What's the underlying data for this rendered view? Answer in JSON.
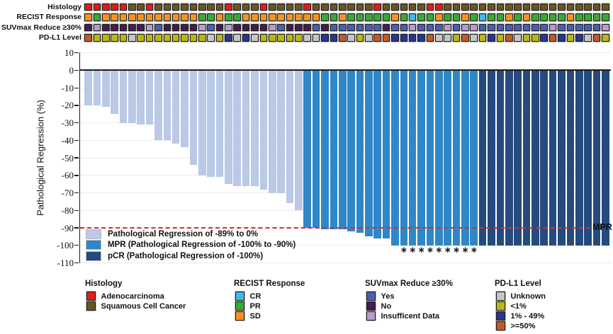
{
  "chart_data": {
    "type": "bar",
    "subtype": "waterfall",
    "title": "",
    "xlabel": "",
    "ylabel": "Pathological Regression (%)",
    "ylim": [
      -110,
      10
    ],
    "yticks": [
      10,
      0,
      -10,
      -20,
      -30,
      -40,
      -50,
      -60,
      -70,
      -80,
      -90,
      -100,
      -110
    ],
    "grid": "horizontal-light",
    "n_patients": 60,
    "values": [
      -20,
      -20,
      -21,
      -25,
      -30,
      -30,
      -31,
      -31,
      -40,
      -40,
      -42,
      -44,
      -54,
      -60,
      -61,
      -61,
      -65,
      -66,
      -66,
      -66,
      -68,
      -70,
      -70,
      -76,
      -80,
      -90,
      -90,
      -91,
      -91,
      -91,
      -92,
      -93,
      -95,
      -96,
      -96,
      -100,
      -100,
      -100,
      -100,
      -100,
      -100,
      -100,
      -100,
      -100,
      -100,
      -100,
      -100,
      -100,
      -100,
      -100,
      -100,
      -100,
      -100,
      -100,
      -100,
      -100,
      -100,
      -100,
      -100,
      -100
    ],
    "bar_groups": [
      "light",
      "light",
      "light",
      "light",
      "light",
      "light",
      "light",
      "light",
      "light",
      "light",
      "light",
      "light",
      "light",
      "light",
      "light",
      "light",
      "light",
      "light",
      "light",
      "light",
      "light",
      "light",
      "light",
      "light",
      "light",
      "mpr",
      "mpr",
      "mpr",
      "mpr",
      "mpr",
      "mpr",
      "mpr",
      "mpr",
      "mpr",
      "mpr",
      "mpr",
      "mpr",
      "mpr",
      "mpr",
      "mpr",
      "mpr",
      "mpr",
      "mpr",
      "mpr",
      "mpr",
      "pcr",
      "pcr",
      "pcr",
      "pcr",
      "pcr",
      "pcr",
      "pcr",
      "pcr",
      "pcr",
      "pcr",
      "pcr",
      "pcr",
      "pcr",
      "pcr",
      "pcr"
    ],
    "asterisk_bar_indices": [
      37,
      38,
      39,
      40,
      41,
      42,
      43,
      44,
      45
    ],
    "reference_line": {
      "value": -90,
      "label": "MPR",
      "color": "#E62528",
      "style": "dashed"
    }
  },
  "bar_colors": {
    "light": "#B9C9E6",
    "mpr": "#2F87C7",
    "pcr": "#254A7D"
  },
  "tracks": [
    {
      "label": "Histology",
      "palette": {
        "A": "#DF1E1C",
        "S": "#6A5523"
      },
      "cells": [
        "A",
        "A",
        "A",
        "A",
        "A",
        "S",
        "S",
        "A",
        "S",
        "S",
        "S",
        "S",
        "S",
        "S",
        "S",
        "S",
        "A",
        "S",
        "S",
        "S",
        "A",
        "S",
        "S",
        "S",
        "S",
        "A",
        "S",
        "S",
        "S",
        "S",
        "S",
        "S",
        "S",
        "A",
        "S",
        "S",
        "S",
        "S",
        "S",
        "A",
        "A",
        "S",
        "S",
        "S",
        "S",
        "S",
        "S",
        "S",
        "S",
        "S",
        "S",
        "S",
        "S",
        "S",
        "S",
        "S",
        "S",
        "S",
        "S",
        "S"
      ]
    },
    {
      "label": "RECIST Response",
      "palette": {
        "S": "#F6921E",
        "P": "#39A935",
        "C": "#3FB9E9"
      },
      "cells": [
        "S",
        "P",
        "S",
        "S",
        "S",
        "S",
        "S",
        "S",
        "S",
        "S",
        "S",
        "S",
        "S",
        "P",
        "P",
        "S",
        "P",
        "P",
        "S",
        "S",
        "S",
        "S",
        "S",
        "S",
        "S",
        "S",
        "S",
        "P",
        "P",
        "S",
        "P",
        "P",
        "P",
        "P",
        "P",
        "S",
        "P",
        "C",
        "P",
        "P",
        "S",
        "P",
        "P",
        "S",
        "P",
        "C",
        "P",
        "P",
        "S",
        "P",
        "S",
        "P",
        "P",
        "P",
        "P",
        "S",
        "P",
        "P",
        "P",
        "P"
      ]
    },
    {
      "label": "SUVmax Reduce ≥30%",
      "palette": {
        "Y": "#4A5FB0",
        "N": "#461B50",
        "I": "#B79BCD"
      },
      "cells": [
        "N",
        "I",
        "N",
        "N",
        "N",
        "N",
        "N",
        "I",
        "Y",
        "N",
        "N",
        "N",
        "N",
        "I",
        "Y",
        "N",
        "I",
        "N",
        "N",
        "N",
        "N",
        "I",
        "Y",
        "N",
        "N",
        "N",
        "Y",
        "N",
        "Y",
        "Y",
        "Y",
        "Y",
        "Y",
        "Y",
        "N",
        "Y",
        "Y",
        "I",
        "Y",
        "Y",
        "Y",
        "I",
        "Y",
        "I",
        "I",
        "Y",
        "Y",
        "Y",
        "Y",
        "Y",
        "Y",
        "Y",
        "Y",
        "I",
        "Y",
        "Y",
        "Y",
        "Y",
        "Y",
        "I"
      ]
    },
    {
      "label": "PD-L1 Level",
      "palette": {
        "U": "#C6C6C6",
        "L": "#B8B714",
        "B": "#27368F",
        "H": "#C05A28"
      },
      "cells": [
        "H",
        "L",
        "L",
        "L",
        "L",
        "U",
        "L",
        "L",
        "L",
        "L",
        "L",
        "L",
        "L",
        "L",
        "U",
        "L",
        "B",
        "U",
        "B",
        "U",
        "L",
        "L",
        "L",
        "L",
        "L",
        "U",
        "U",
        "B",
        "B",
        "H",
        "U",
        "L",
        "U",
        "H",
        "H",
        "B",
        "B",
        "B",
        "B",
        "H",
        "U",
        "U",
        "L",
        "H",
        "U",
        "L",
        "B",
        "L",
        "H",
        "U",
        "L",
        "L",
        "B",
        "H",
        "B",
        "L",
        "B",
        "U",
        "H",
        "L"
      ]
    }
  ],
  "inner_legend": {
    "items": [
      {
        "color_key": "light",
        "label": "Pathological Regression of -89% to 0%"
      },
      {
        "color_key": "mpr",
        "label": "MPR (Pathological Regression of -100% to -90%)"
      },
      {
        "color_key": "pcr",
        "label": "pCR (Pathological Regression of -100%)"
      }
    ]
  },
  "bottom_legends": [
    {
      "title": "Histology",
      "items": [
        {
          "label": "Adenocarcinoma",
          "color": "#DF1E1C"
        },
        {
          "label": "Squamous Cell Cancer",
          "color": "#6A5523"
        }
      ]
    },
    {
      "title": "RECIST Response",
      "items": [
        {
          "label": "CR",
          "color": "#3FB9E9"
        },
        {
          "label": "PR",
          "color": "#39A935"
        },
        {
          "label": "SD",
          "color": "#F6921E"
        }
      ]
    },
    {
      "title": "SUVmax Reduce ≥30%",
      "items": [
        {
          "label": "Yes",
          "color": "#4A5FB0"
        },
        {
          "label": "No",
          "color": "#461B50"
        },
        {
          "label": "Insufficent Data",
          "color": "#B79BCD"
        }
      ]
    },
    {
      "title": "PD-L1 Level",
      "items": [
        {
          "label": "Unknown",
          "color": "#C6C6C6"
        },
        {
          "label": "<1%",
          "color": "#B8B714"
        },
        {
          "label": "1% - 49%",
          "color": "#27368F"
        },
        {
          "label": ">=50%",
          "color": "#C05A28"
        }
      ]
    }
  ]
}
